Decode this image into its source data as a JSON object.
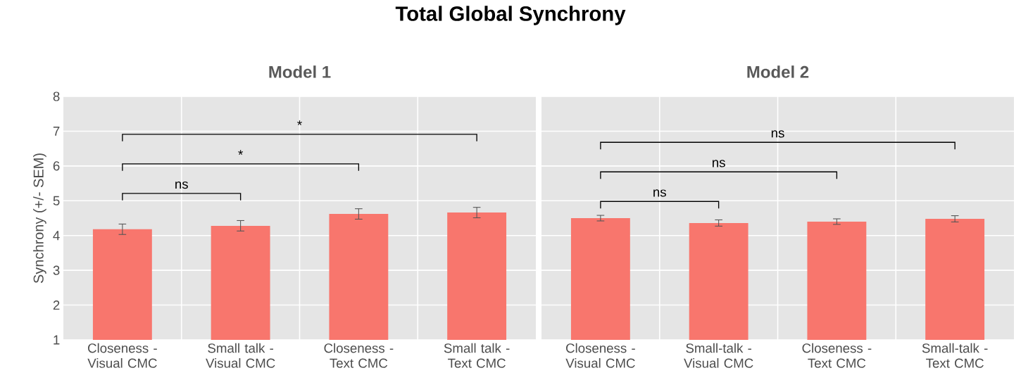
{
  "chart_data": [
    {
      "type": "bar",
      "title": "Total Global Synchrony",
      "subtitle": "Model 1",
      "ylabel": "Synchrony (+/- SEM)",
      "categories": [
        "Closeness - Visual CMC",
        "Small talk - Visual CMC",
        "Closeness - Text CMC",
        "Small talk - Text CMC"
      ],
      "values": [
        4.18,
        4.28,
        4.62,
        4.66
      ],
      "errors": [
        0.15,
        0.15,
        0.15,
        0.15
      ],
      "color": "#f8766d",
      "ylim": [
        1,
        8
      ],
      "yticks": [
        1,
        2,
        3,
        4,
        5,
        6,
        7,
        8
      ],
      "grid": true,
      "annotations": [
        "ns",
        "*",
        "*"
      ]
    },
    {
      "type": "bar",
      "title": "Model 2",
      "categories": [
        "Closeness - Visual CMC",
        "Small-talk - Visual CMC",
        "Closeness - Text CMC",
        "Small-talk - Text CMC"
      ],
      "values": [
        4.5,
        4.36,
        4.4,
        4.48
      ],
      "errors": [
        0.08,
        0.09,
        0.08,
        0.09
      ],
      "color": "#f8766d",
      "ylim": [
        1,
        8
      ],
      "yticks": [
        1,
        2,
        3,
        4,
        5,
        6,
        7,
        8
      ],
      "grid": true,
      "tick_labels": "x",
      "annotations": [
        "ns",
        "ns",
        "ns"
      ]
    }
  ]
}
